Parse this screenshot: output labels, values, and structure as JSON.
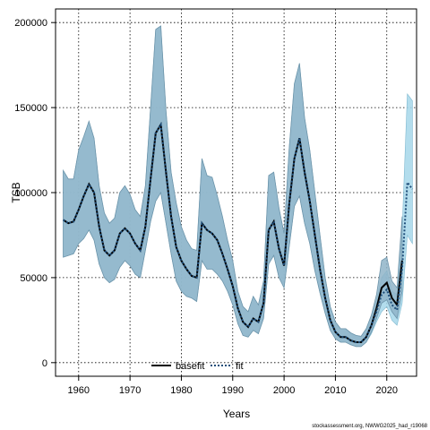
{
  "chart_data": {
    "type": "line",
    "xlabel": "Years",
    "ylabel": "TSB",
    "xlim": [
      1955.5,
      2025.8
    ],
    "ylim": [
      -8000,
      208000
    ],
    "x_ticks": [
      1960,
      1970,
      1980,
      1990,
      2000,
      2010,
      2020
    ],
    "y_ticks": [
      0,
      50000,
      100000,
      150000,
      200000
    ],
    "x_tick_labels": [
      "1960",
      "1970",
      "1980",
      "1990",
      "2000",
      "2010",
      "2020"
    ],
    "y_tick_labels": [
      "0",
      "50000",
      "100000",
      "150000",
      "200000"
    ],
    "grid": true,
    "legend_position": "bottom",
    "legend": [
      {
        "label": "basefit",
        "style": "solid",
        "color": "#000000"
      },
      {
        "label": "fit",
        "style": "dotted",
        "color": "#1f4e7a"
      }
    ],
    "credit": "stockassessment.org, NWWG2025_had_r19068",
    "colors": {
      "band_base": "#8fb4c8",
      "band_base_edge": "#6e95ab",
      "band_fit": "#a6d7ea",
      "line_base": "#000000",
      "line_fit": "#1f4e7a"
    },
    "series": [
      {
        "name": "basefit",
        "x": [
          1957,
          1958,
          1959,
          1960,
          1961,
          1962,
          1963,
          1964,
          1965,
          1966,
          1967,
          1968,
          1969,
          1970,
          1971,
          1972,
          1973,
          1974,
          1975,
          1976,
          1977,
          1978,
          1979,
          1980,
          1981,
          1982,
          1983,
          1984,
          1985,
          1986,
          1987,
          1988,
          1989,
          1990,
          1991,
          1992,
          1993,
          1994,
          1995,
          1996,
          1997,
          1998,
          1999,
          2000,
          2001,
          2002,
          2003,
          2004,
          2005,
          2006,
          2007,
          2008,
          2009,
          2010,
          2011,
          2012,
          2013,
          2014,
          2015,
          2016,
          2017,
          2018,
          2019,
          2020,
          2021,
          2022,
          2023
        ],
        "y": [
          84000,
          82000,
          83000,
          90000,
          98000,
          105000,
          100000,
          80000,
          66000,
          63000,
          66000,
          76000,
          79000,
          76000,
          70000,
          66000,
          80000,
          108000,
          135000,
          140000,
          112000,
          86000,
          68000,
          60000,
          55000,
          51000,
          50000,
          82000,
          78000,
          76000,
          72000,
          64000,
          55000,
          45000,
          32000,
          24000,
          21000,
          26000,
          24000,
          35000,
          78000,
          83000,
          67000,
          57000,
          93000,
          120000,
          132000,
          112000,
          95000,
          75000,
          55000,
          38000,
          25000,
          18000,
          15000,
          15000,
          13000,
          12000,
          12000,
          15000,
          22000,
          32000,
          44000,
          47000,
          38000,
          34000,
          60000
        ],
        "lower": [
          62000,
          63000,
          64000,
          70000,
          73000,
          78000,
          72000,
          58000,
          50000,
          47000,
          49000,
          56000,
          60000,
          57000,
          52000,
          50000,
          66000,
          83000,
          95000,
          100000,
          82000,
          64000,
          48000,
          42000,
          39000,
          38000,
          36000,
          60000,
          55000,
          55000,
          52000,
          48000,
          42000,
          34000,
          23000,
          16000,
          15000,
          19000,
          17000,
          26000,
          58000,
          63000,
          50000,
          44000,
          68000,
          92000,
          98000,
          82000,
          70000,
          54000,
          41000,
          29000,
          19000,
          14000,
          12000,
          12000,
          10500,
          9500,
          9500,
          12000,
          18000,
          26000,
          35000,
          37000,
          30000,
          26000,
          42000
        ],
        "upper": [
          113000,
          108000,
          108000,
          125000,
          133000,
          142000,
          132000,
          104000,
          88000,
          82000,
          85000,
          100000,
          104000,
          99000,
          90000,
          86000,
          104000,
          150000,
          196000,
          198000,
          148000,
          112000,
          94000,
          80000,
          72000,
          67000,
          66000,
          120000,
          110000,
          109000,
          98000,
          86000,
          72000,
          60000,
          42000,
          33000,
          30000,
          39000,
          34000,
          48000,
          110000,
          112000,
          91000,
          76000,
          126000,
          164000,
          176000,
          144000,
          125000,
          100000,
          75000,
          50000,
          33000,
          24000,
          20000,
          20000,
          17500,
          16000,
          15500,
          20000,
          28000,
          40000,
          60000,
          62000,
          48000,
          44000,
          86000
        ]
      },
      {
        "name": "fit",
        "x": [
          1957,
          1958,
          1959,
          1960,
          1961,
          1962,
          1963,
          1964,
          1965,
          1966,
          1967,
          1968,
          1969,
          1970,
          1971,
          1972,
          1973,
          1974,
          1975,
          1976,
          1977,
          1978,
          1979,
          1980,
          1981,
          1982,
          1983,
          1984,
          1985,
          1986,
          1987,
          1988,
          1989,
          1990,
          1991,
          1992,
          1993,
          1994,
          1995,
          1996,
          1997,
          1998,
          1999,
          2000,
          2001,
          2002,
          2003,
          2004,
          2005,
          2006,
          2007,
          2008,
          2009,
          2010,
          2011,
          2012,
          2013,
          2014,
          2015,
          2016,
          2017,
          2018,
          2019,
          2020,
          2021,
          2022,
          2023,
          2024,
          2025
        ],
        "y": [
          84000,
          82000,
          83000,
          90000,
          98000,
          105000,
          100000,
          80000,
          66000,
          63000,
          66000,
          76000,
          79000,
          76000,
          70000,
          66000,
          80000,
          108000,
          135000,
          140000,
          112000,
          86000,
          68000,
          60000,
          55000,
          51000,
          50000,
          82000,
          78000,
          76000,
          72000,
          64000,
          55000,
          45000,
          32000,
          24000,
          21000,
          26000,
          24000,
          35000,
          78000,
          83000,
          67000,
          57000,
          93000,
          120000,
          132000,
          112000,
          95000,
          75000,
          55000,
          38000,
          25000,
          18000,
          15000,
          15000,
          13000,
          12000,
          12000,
          15000,
          22000,
          30000,
          40000,
          43000,
          34000,
          31000,
          55000,
          106000,
          102000
        ],
        "lower": [
          62000,
          63000,
          64000,
          70000,
          73000,
          78000,
          72000,
          58000,
          50000,
          47000,
          49000,
          56000,
          60000,
          57000,
          52000,
          50000,
          66000,
          83000,
          95000,
          100000,
          82000,
          64000,
          48000,
          42000,
          39000,
          38000,
          36000,
          60000,
          55000,
          55000,
          52000,
          48000,
          42000,
          34000,
          23000,
          16000,
          15000,
          19000,
          17000,
          26000,
          58000,
          63000,
          50000,
          44000,
          68000,
          92000,
          98000,
          82000,
          70000,
          54000,
          41000,
          29000,
          19000,
          14000,
          12000,
          12000,
          10500,
          9500,
          9500,
          12000,
          17000,
          24000,
          30000,
          33000,
          25000,
          22000,
          35000,
          75000,
          70000
        ],
        "upper": [
          113000,
          108000,
          108000,
          125000,
          133000,
          142000,
          132000,
          104000,
          88000,
          82000,
          85000,
          100000,
          104000,
          99000,
          90000,
          86000,
          104000,
          150000,
          196000,
          198000,
          148000,
          112000,
          94000,
          80000,
          72000,
          67000,
          66000,
          120000,
          110000,
          109000,
          98000,
          86000,
          72000,
          60000,
          42000,
          33000,
          30000,
          39000,
          34000,
          48000,
          110000,
          112000,
          91000,
          76000,
          126000,
          164000,
          176000,
          144000,
          125000,
          100000,
          75000,
          50000,
          33000,
          24000,
          20000,
          20000,
          17500,
          16000,
          15500,
          20000,
          27000,
          37000,
          50000,
          54000,
          42000,
          40000,
          78000,
          158000,
          154000
        ]
      }
    ]
  }
}
